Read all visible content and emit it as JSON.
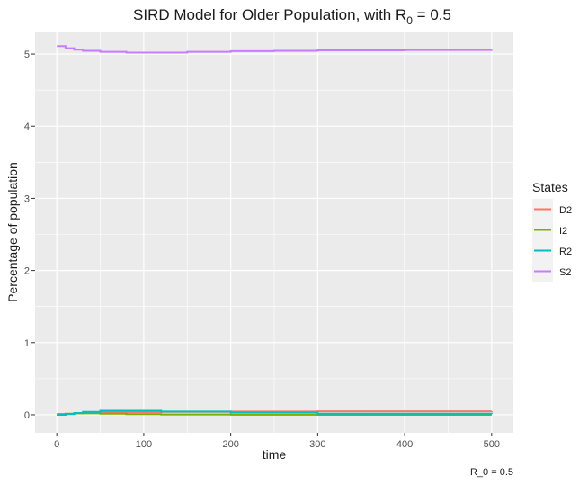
{
  "chart_data": {
    "type": "line",
    "title_main": "SIRD Model for Older Population, with R",
    "title_sub": "0",
    "title_tail": " = 0.5",
    "xlabel": "time",
    "ylabel": "Percentage of population",
    "caption": "R_0 = 0.5",
    "xlim": [
      -25,
      525
    ],
    "ylim": [
      -0.25,
      5.3
    ],
    "x_ticks": [
      0,
      100,
      200,
      300,
      400,
      500
    ],
    "y_ticks": [
      0,
      1,
      2,
      3,
      4,
      5
    ],
    "grid": true,
    "legend": {
      "title": "States",
      "position": "right"
    },
    "series": [
      {
        "name": "D2",
        "color": "#F8766D",
        "x": [
          0,
          10,
          20,
          30,
          50,
          80,
          120,
          200,
          300,
          500
        ],
        "y": [
          0.0,
          0.01,
          0.02,
          0.025,
          0.03,
          0.035,
          0.04,
          0.045,
          0.048,
          0.05
        ]
      },
      {
        "name": "I2",
        "color": "#7CAE00",
        "x": [
          0,
          10,
          20,
          30,
          50,
          80,
          120,
          200,
          300,
          500
        ],
        "y": [
          0.01,
          0.015,
          0.02,
          0.02,
          0.015,
          0.008,
          0.004,
          0.001,
          0.0,
          0.0
        ]
      },
      {
        "name": "R2",
        "color": "#00BFC4",
        "x": [
          0,
          10,
          20,
          30,
          50,
          80,
          120,
          200,
          300,
          500
        ],
        "y": [
          0.0,
          0.01,
          0.025,
          0.04,
          0.055,
          0.055,
          0.045,
          0.03,
          0.015,
          0.01
        ]
      },
      {
        "name": "S2",
        "color": "#C77CFF",
        "x": [
          0,
          10,
          20,
          30,
          50,
          80,
          100,
          150,
          200,
          250,
          300,
          400,
          500
        ],
        "y": [
          5.11,
          5.08,
          5.06,
          5.045,
          5.03,
          5.02,
          5.02,
          5.03,
          5.04,
          5.045,
          5.05,
          5.055,
          5.06
        ]
      }
    ]
  }
}
